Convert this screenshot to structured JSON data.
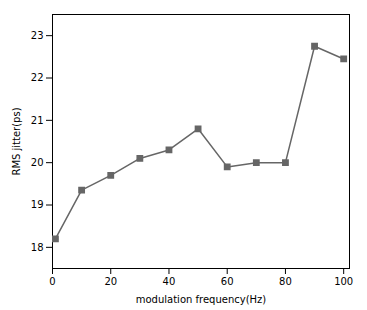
{
  "chart_data": {
    "type": "line",
    "x": [
      1,
      10,
      20,
      30,
      40,
      50,
      60,
      70,
      80,
      90,
      100
    ],
    "values": [
      18.2,
      19.35,
      19.7,
      20.1,
      20.3,
      20.8,
      19.9,
      20.0,
      20.0,
      22.75,
      22.45
    ],
    "xlabel": "modulation frequency(Hz)",
    "ylabel": "RMS jitter(ps)",
    "xlim": [
      0,
      102
    ],
    "ylim": [
      17.5,
      23.5
    ],
    "xticks": [
      0,
      20,
      40,
      60,
      80,
      100
    ],
    "yticks": [
      18,
      19,
      20,
      21,
      22,
      23
    ],
    "color": "#666666",
    "marker": "square",
    "grid": false
  }
}
